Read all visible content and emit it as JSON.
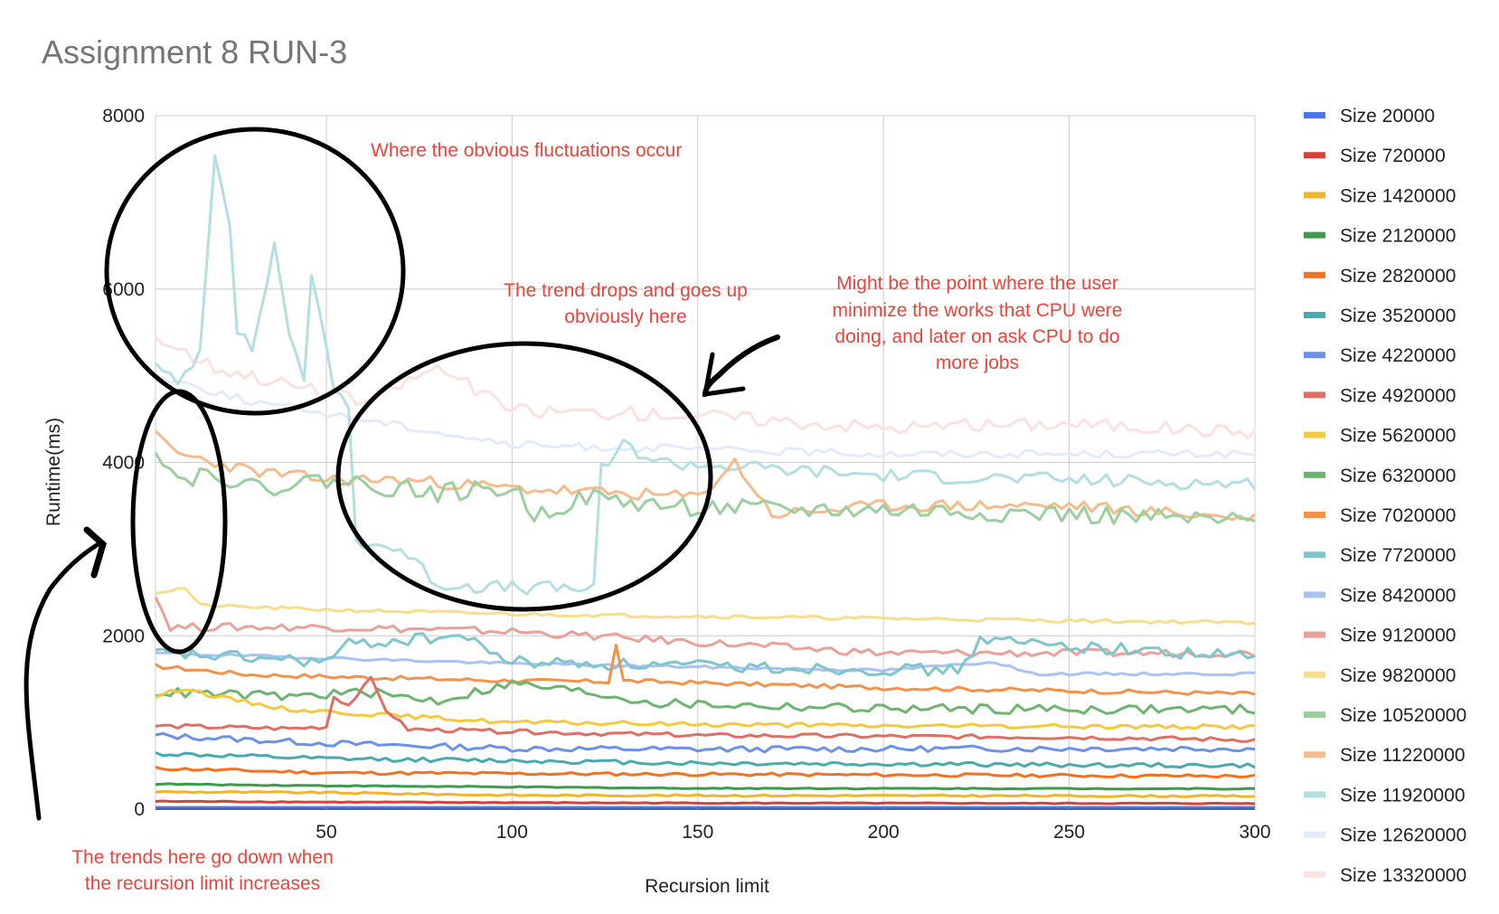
{
  "chart_data": {
    "type": "line",
    "title": "Assignment 8 RUN-3",
    "xlabel": "Recursion limit",
    "ylabel": "Runtime(ms)",
    "xlim": [
      4,
      300
    ],
    "ylim": [
      0,
      8000
    ],
    "x_ticks": [
      50,
      100,
      150,
      200,
      250,
      300
    ],
    "y_ticks": [
      0,
      2000,
      4000,
      6000,
      8000
    ],
    "grid": true,
    "legend_position": "right",
    "series": [
      {
        "name": "Size 20000",
        "color": "#4a78e4",
        "anchors": [
          [
            4,
            20
          ],
          [
            300,
            20
          ]
        ],
        "noise": 0
      },
      {
        "name": "Size 720000",
        "color": "#d84236",
        "anchors": [
          [
            4,
            90
          ],
          [
            60,
            80
          ],
          [
            150,
            70
          ],
          [
            300,
            65
          ]
        ],
        "noise": 5
      },
      {
        "name": "Size 1420000",
        "color": "#f1b52c",
        "anchors": [
          [
            4,
            200
          ],
          [
            50,
            190
          ],
          [
            100,
            160
          ],
          [
            300,
            150
          ]
        ],
        "noise": 10
      },
      {
        "name": "Size 2120000",
        "color": "#3e9a4c",
        "anchors": [
          [
            4,
            290
          ],
          [
            50,
            270
          ],
          [
            150,
            240
          ],
          [
            300,
            235
          ]
        ],
        "noise": 6
      },
      {
        "name": "Size 2820000",
        "color": "#f07222",
        "anchors": [
          [
            4,
            470
          ],
          [
            50,
            420
          ],
          [
            100,
            410
          ],
          [
            300,
            380
          ]
        ],
        "noise": 18
      },
      {
        "name": "Size 3520000",
        "color": "#4aaab2",
        "anchors": [
          [
            4,
            640
          ],
          [
            50,
            580
          ],
          [
            100,
            560
          ],
          [
            150,
            530
          ],
          [
            300,
            500
          ]
        ],
        "noise": 25
      },
      {
        "name": "Size 4220000",
        "color": "#6a92ea",
        "anchors": [
          [
            4,
            850
          ],
          [
            50,
            760
          ],
          [
            100,
            700
          ],
          [
            150,
            690
          ],
          [
            250,
            700
          ],
          [
            300,
            700
          ]
        ],
        "noise": 35
      },
      {
        "name": "Size 4920000",
        "color": "#df6f63",
        "anchors": [
          [
            4,
            960
          ],
          [
            40,
            930
          ],
          [
            50,
            950
          ],
          [
            52,
            1300
          ],
          [
            56,
            1200
          ],
          [
            62,
            1500
          ],
          [
            66,
            1150
          ],
          [
            72,
            920
          ],
          [
            150,
            850
          ],
          [
            250,
            830
          ],
          [
            300,
            800
          ]
        ],
        "noise": 25
      },
      {
        "name": "Size 5620000",
        "color": "#f5c93f",
        "anchors": [
          [
            4,
            1300
          ],
          [
            12,
            1400
          ],
          [
            20,
            1300
          ],
          [
            40,
            1150
          ],
          [
            100,
            1000
          ],
          [
            200,
            960
          ],
          [
            300,
            950
          ]
        ],
        "noise": 25
      },
      {
        "name": "Size 6320000",
        "color": "#6bb56f",
        "anchors": [
          [
            4,
            1350
          ],
          [
            40,
            1300
          ],
          [
            60,
            1350
          ],
          [
            80,
            1250
          ],
          [
            100,
            1450
          ],
          [
            120,
            1350
          ],
          [
            140,
            1220
          ],
          [
            200,
            1160
          ],
          [
            300,
            1150
          ]
        ],
        "noise": 55
      },
      {
        "name": "Size 7020000",
        "color": "#f3924a",
        "anchors": [
          [
            4,
            1650
          ],
          [
            30,
            1550
          ],
          [
            100,
            1480
          ],
          [
            126,
            1470
          ],
          [
            128,
            1900
          ],
          [
            130,
            1480
          ],
          [
            200,
            1400
          ],
          [
            300,
            1330
          ]
        ],
        "noise": 25
      },
      {
        "name": "Size 7720000",
        "color": "#7fc5cc",
        "anchors": [
          [
            4,
            1800
          ],
          [
            50,
            1700
          ],
          [
            56,
            1900
          ],
          [
            86,
            2000
          ],
          [
            100,
            1700
          ],
          [
            150,
            1650
          ],
          [
            220,
            1600
          ],
          [
            226,
            1950
          ],
          [
            300,
            1750
          ]
        ],
        "noise": 70
      },
      {
        "name": "Size 8420000",
        "color": "#a9c2f3",
        "anchors": [
          [
            4,
            1800
          ],
          [
            100,
            1680
          ],
          [
            200,
            1600
          ],
          [
            230,
            1700
          ],
          [
            240,
            1560
          ],
          [
            300,
            1560
          ]
        ],
        "noise": 15
      },
      {
        "name": "Size 9120000",
        "color": "#e9a19a",
        "anchors": [
          [
            4,
            2450
          ],
          [
            8,
            2100
          ],
          [
            50,
            2100
          ],
          [
            100,
            2050
          ],
          [
            200,
            1800
          ],
          [
            300,
            1800
          ]
        ],
        "noise": 45
      },
      {
        "name": "Size 9820000",
        "color": "#f8dd8a",
        "anchors": [
          [
            4,
            2500
          ],
          [
            12,
            2550
          ],
          [
            16,
            2350
          ],
          [
            50,
            2300
          ],
          [
            100,
            2250
          ],
          [
            200,
            2200
          ],
          [
            300,
            2150
          ]
        ],
        "noise": 20
      },
      {
        "name": "Size 10520000",
        "color": "#9bcf9e",
        "anchors": [
          [
            4,
            4200
          ],
          [
            10,
            3800
          ],
          [
            20,
            3900
          ],
          [
            30,
            3700
          ],
          [
            50,
            3800
          ],
          [
            80,
            3650
          ],
          [
            100,
            3700
          ],
          [
            106,
            3400
          ],
          [
            120,
            3600
          ],
          [
            140,
            3500
          ],
          [
            170,
            3450
          ],
          [
            200,
            3450
          ],
          [
            250,
            3400
          ],
          [
            300,
            3300
          ]
        ],
        "noise": 110
      },
      {
        "name": "Size 11220000",
        "color": "#f6bb8c",
        "anchors": [
          [
            4,
            4300
          ],
          [
            10,
            4100
          ],
          [
            30,
            3900
          ],
          [
            50,
            3800
          ],
          [
            70,
            3800
          ],
          [
            100,
            3700
          ],
          [
            150,
            3600
          ],
          [
            160,
            4000
          ],
          [
            170,
            3400
          ],
          [
            200,
            3500
          ],
          [
            250,
            3500
          ],
          [
            300,
            3350
          ]
        ],
        "noise": 70
      },
      {
        "name": "Size 11920000",
        "color": "#b3dfe3",
        "anchors": [
          [
            4,
            5100
          ],
          [
            10,
            4900
          ],
          [
            16,
            5300
          ],
          [
            20,
            7600
          ],
          [
            24,
            6800
          ],
          [
            26,
            5500
          ],
          [
            30,
            5300
          ],
          [
            36,
            6500
          ],
          [
            40,
            5500
          ],
          [
            44,
            5000
          ],
          [
            46,
            6100
          ],
          [
            52,
            4900
          ],
          [
            56,
            4600
          ],
          [
            58,
            3100
          ],
          [
            70,
            3000
          ],
          [
            80,
            2600
          ],
          [
            100,
            2550
          ],
          [
            122,
            2550
          ],
          [
            124,
            3900
          ],
          [
            130,
            4200
          ],
          [
            140,
            4000
          ],
          [
            160,
            3950
          ],
          [
            200,
            3850
          ],
          [
            250,
            3800
          ],
          [
            300,
            3750
          ]
        ],
        "noise": 80
      },
      {
        "name": "Size 12620000",
        "color": "#e3ebfb",
        "anchors": [
          [
            4,
            5000
          ],
          [
            30,
            4700
          ],
          [
            60,
            4500
          ],
          [
            100,
            4200
          ],
          [
            150,
            4150
          ],
          [
            200,
            4100
          ],
          [
            250,
            4100
          ],
          [
            300,
            4100
          ]
        ],
        "noise": 45
      },
      {
        "name": "Size 13320000",
        "color": "#fbe1e0",
        "anchors": [
          [
            4,
            5450
          ],
          [
            20,
            5100
          ],
          [
            40,
            4900
          ],
          [
            60,
            4700
          ],
          [
            80,
            5100
          ],
          [
            100,
            4600
          ],
          [
            150,
            4550
          ],
          [
            200,
            4400
          ],
          [
            250,
            4450
          ],
          [
            300,
            4350
          ]
        ],
        "noise": 80
      }
    ]
  },
  "annotations": {
    "fluctuations": "Where the obvious fluctuations occur",
    "trend_line1": "The trend drops and goes up",
    "trend_line2": "obviously here",
    "cpu_line1": "Might be the point where the user",
    "cpu_line2": "minimize the works that CPU were",
    "cpu_line3": "doing, and later on ask CPU to do",
    "cpu_line4": "more jobs",
    "down_line1": "The trends here go down when",
    "down_line2": "the recursion limit increases"
  }
}
